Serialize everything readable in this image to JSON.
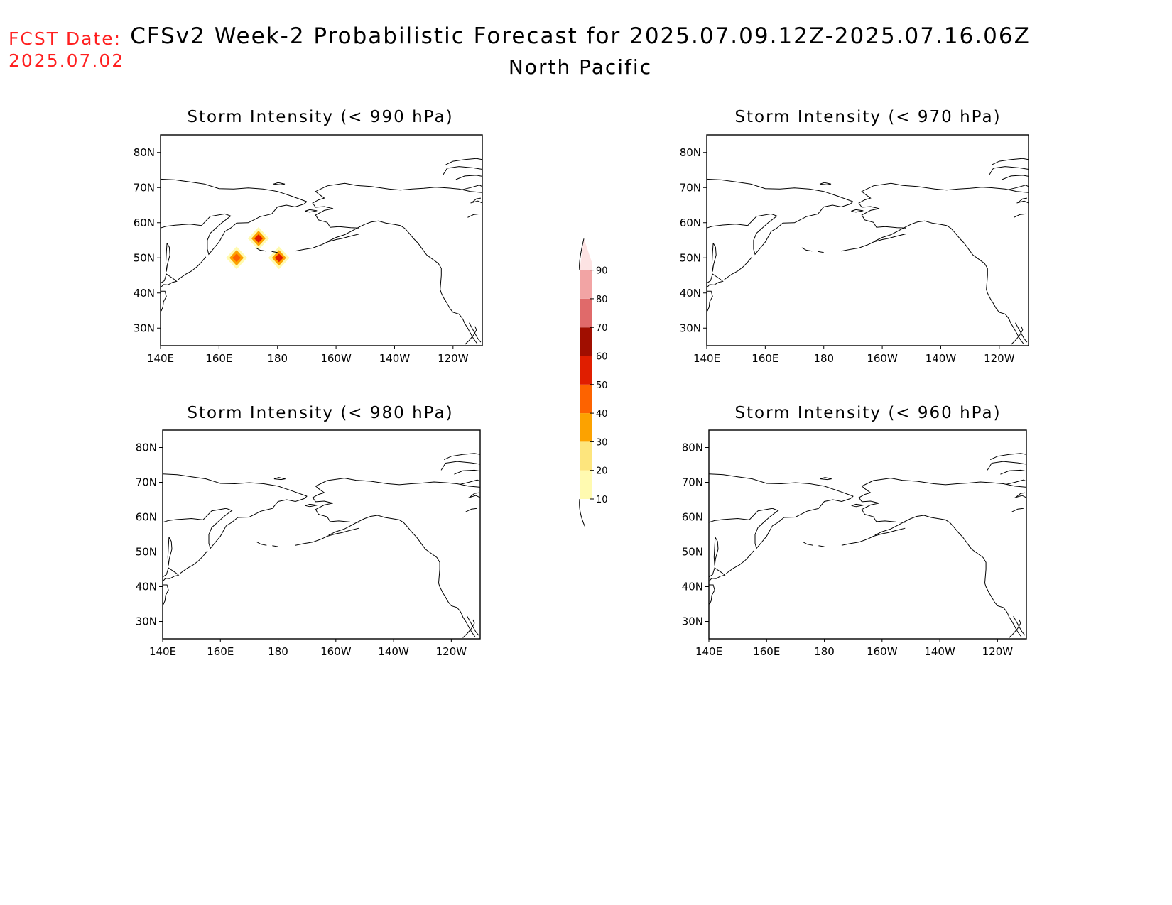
{
  "header": {
    "fcst_label": "FCST Date:",
    "fcst_date": "2025.07.02",
    "title_line1": "CFSv2 Week-2 Probabilistic Forecast for 2025.07.09.12Z-2025.07.16.06Z",
    "title_line2": "North Pacific",
    "fcst_color": "#ff2020"
  },
  "axes": {
    "lat_ticks": [
      "80N",
      "70N",
      "60N",
      "50N",
      "40N",
      "30N"
    ],
    "lon_ticks": [
      "140E",
      "160E",
      "180",
      "160W",
      "140W",
      "120W"
    ]
  },
  "panels": [
    {
      "id": "p990",
      "title": "Storm Intensity (< 990 hPa)",
      "blobs": [
        {
          "lon": 166,
          "lat": 50,
          "level": 40
        },
        {
          "lon": 180.5,
          "lat": 50,
          "level": 50
        },
        {
          "lon": 173.5,
          "lat": 55.5,
          "level": 50
        }
      ]
    },
    {
      "id": "p970",
      "title": "Storm Intensity (< 970 hPa)",
      "blobs": []
    },
    {
      "id": "p980",
      "title": "Storm Intensity (< 980 hPa)",
      "blobs": []
    },
    {
      "id": "p960",
      "title": "Storm Intensity (< 960 hPa)",
      "blobs": []
    }
  ],
  "colorbar": {
    "levels": [
      "10",
      "20",
      "30",
      "40",
      "50",
      "60",
      "70",
      "80",
      "90"
    ],
    "colors": [
      "#fffab0",
      "#fde57d",
      "#fca200",
      "#fd6300",
      "#e01e00",
      "#a00e00",
      "#e06a6a",
      "#f2a4a4",
      "#fde3e3"
    ]
  }
}
